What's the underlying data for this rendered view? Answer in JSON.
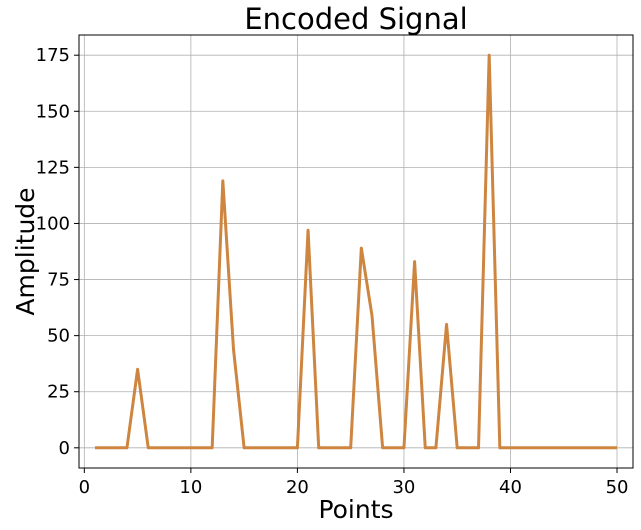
{
  "chart_data": {
    "type": "line",
    "title": "Encoded Signal",
    "xlabel": "Points",
    "ylabel": "Amplitude",
    "xlim": [
      -0.5,
      51.5
    ],
    "ylim": [
      -9,
      184
    ],
    "xticks": [
      0,
      10,
      20,
      30,
      40,
      50
    ],
    "yticks": [
      0,
      25,
      50,
      75,
      100,
      125,
      150,
      175
    ],
    "grid": true,
    "series": [
      {
        "color": "#cd853f",
        "x": [
          1,
          2,
          3,
          4,
          5,
          6,
          7,
          8,
          9,
          10,
          11,
          12,
          13,
          14,
          15,
          16,
          17,
          18,
          19,
          20,
          21,
          22,
          23,
          24,
          25,
          26,
          27,
          28,
          29,
          30,
          31,
          32,
          33,
          34,
          35,
          36,
          37,
          38,
          39,
          40,
          41,
          42,
          43,
          44,
          45,
          46,
          47,
          48,
          49,
          50
        ],
        "y": [
          0,
          0,
          0,
          0,
          35,
          0,
          0,
          0,
          0,
          0,
          0,
          0,
          119,
          44,
          0,
          0,
          0,
          0,
          0,
          0,
          97,
          0,
          0,
          0,
          0,
          89,
          59,
          0,
          0,
          0,
          83,
          0,
          0,
          55,
          0,
          0,
          0,
          175,
          0,
          0,
          0,
          0,
          0,
          0,
          0,
          0,
          0,
          0,
          0,
          0
        ]
      }
    ]
  }
}
